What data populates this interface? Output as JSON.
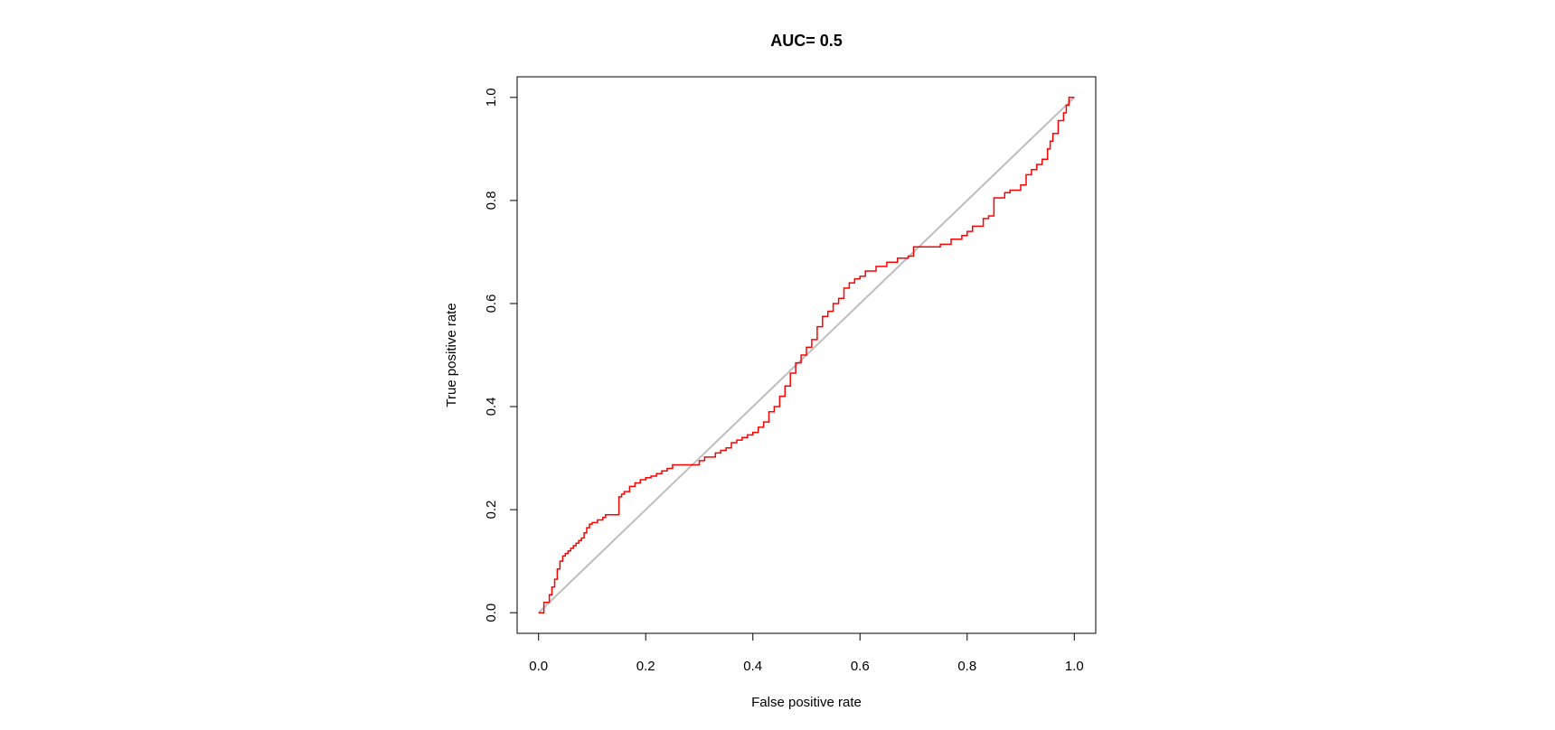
{
  "chart_data": {
    "type": "line",
    "title": "AUC= 0.5",
    "xlabel": "False positive rate",
    "ylabel": "True positive rate",
    "xlim": [
      -0.04,
      1.04
    ],
    "ylim": [
      -0.04,
      1.04
    ],
    "x_ticks": [
      0.0,
      0.2,
      0.4,
      0.6,
      0.8,
      1.0
    ],
    "x_tick_labels": [
      "0.0",
      "0.2",
      "0.4",
      "0.6",
      "0.8",
      "1.0"
    ],
    "y_ticks": [
      0.0,
      0.2,
      0.4,
      0.6,
      0.8,
      1.0
    ],
    "y_tick_labels": [
      "0.0",
      "0.2",
      "0.4",
      "0.6",
      "0.8",
      "1.0"
    ],
    "grid": false,
    "legend": "none",
    "colors": {
      "roc": "#ff0000",
      "diagonal": "#bebebe",
      "frame": "#000000"
    },
    "series": [
      {
        "key": "roc",
        "step": true,
        "x": [
          0.0,
          0.01,
          0.02,
          0.025,
          0.03,
          0.035,
          0.04,
          0.045,
          0.05,
          0.055,
          0.06,
          0.065,
          0.07,
          0.075,
          0.08,
          0.085,
          0.09,
          0.095,
          0.1,
          0.11,
          0.12,
          0.125,
          0.13,
          0.15,
          0.155,
          0.16,
          0.17,
          0.18,
          0.19,
          0.2,
          0.21,
          0.22,
          0.23,
          0.24,
          0.25,
          0.3,
          0.31,
          0.33,
          0.34,
          0.35,
          0.36,
          0.37,
          0.38,
          0.39,
          0.4,
          0.41,
          0.42,
          0.43,
          0.44,
          0.45,
          0.46,
          0.47,
          0.48,
          0.49,
          0.5,
          0.51,
          0.52,
          0.53,
          0.54,
          0.55,
          0.56,
          0.57,
          0.58,
          0.59,
          0.6,
          0.61,
          0.63,
          0.65,
          0.67,
          0.69,
          0.7,
          0.75,
          0.77,
          0.79,
          0.8,
          0.81,
          0.83,
          0.84,
          0.85,
          0.87,
          0.88,
          0.9,
          0.91,
          0.92,
          0.93,
          0.94,
          0.95,
          0.955,
          0.96,
          0.97,
          0.98,
          0.985,
          0.99,
          1.0
        ],
        "y": [
          0.0,
          0.02,
          0.035,
          0.05,
          0.065,
          0.085,
          0.1,
          0.11,
          0.115,
          0.12,
          0.125,
          0.13,
          0.135,
          0.14,
          0.145,
          0.155,
          0.165,
          0.172,
          0.175,
          0.18,
          0.185,
          0.19,
          0.19,
          0.225,
          0.23,
          0.235,
          0.245,
          0.252,
          0.258,
          0.262,
          0.265,
          0.27,
          0.275,
          0.28,
          0.287,
          0.295,
          0.302,
          0.31,
          0.315,
          0.32,
          0.33,
          0.335,
          0.34,
          0.345,
          0.35,
          0.36,
          0.37,
          0.39,
          0.4,
          0.42,
          0.44,
          0.465,
          0.485,
          0.5,
          0.515,
          0.53,
          0.555,
          0.575,
          0.585,
          0.6,
          0.61,
          0.63,
          0.64,
          0.648,
          0.653,
          0.663,
          0.672,
          0.68,
          0.688,
          0.692,
          0.71,
          0.715,
          0.725,
          0.732,
          0.74,
          0.75,
          0.765,
          0.77,
          0.805,
          0.815,
          0.82,
          0.83,
          0.85,
          0.86,
          0.87,
          0.88,
          0.9,
          0.915,
          0.93,
          0.955,
          0.97,
          0.985,
          1.0,
          1.0
        ]
      },
      {
        "key": "diagonal",
        "step": false,
        "x": [
          0.0,
          1.0
        ],
        "y": [
          0.0,
          1.0
        ]
      }
    ]
  }
}
